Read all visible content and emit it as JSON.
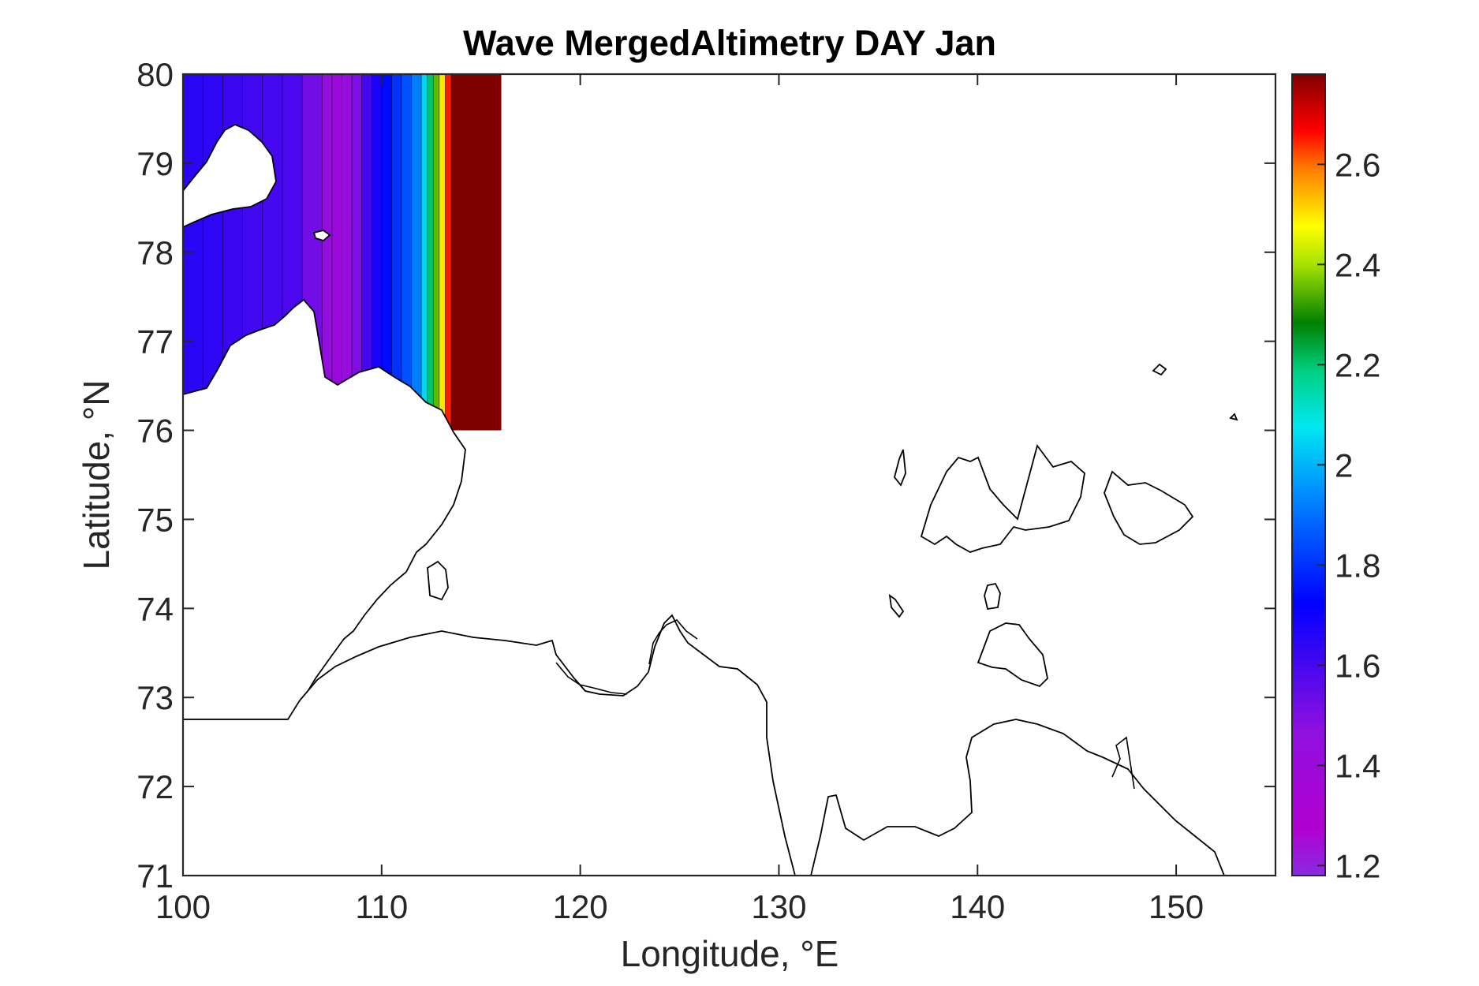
{
  "chart_data": {
    "type": "heatmap",
    "title": "Wave MergedAltimetry DAY Jan",
    "xlabel": "Longitude, °E",
    "ylabel": "Latitude, °N",
    "xlim": [
      100,
      155
    ],
    "ylim": [
      71,
      80
    ],
    "xticks": [
      100,
      110,
      120,
      130,
      140,
      150
    ],
    "yticks": [
      71,
      72,
      73,
      74,
      75,
      76,
      77,
      78,
      79,
      80
    ],
    "colorbar": {
      "colormap": "jet-extended (violet to dark red)",
      "clim": [
        1.18,
        2.78
      ],
      "ticks": [
        1.2,
        1.4,
        1.6,
        1.8,
        2,
        2.2,
        2.4,
        2.6
      ],
      "tick_labels": [
        "1.2",
        "1.4",
        "1.6",
        "1.8",
        "2",
        "2.2",
        "2.4",
        "2.6"
      ]
    },
    "field_columns": {
      "description_free": true,
      "lat_top": 80,
      "lat_bottom": 76,
      "lon": [
        100,
        101,
        102,
        103,
        104,
        105,
        106,
        107,
        107.5,
        108,
        108.5,
        109,
        109.5,
        110,
        110.5,
        111,
        111.5,
        112,
        112.3,
        112.6,
        112.9,
        113.2,
        113.5,
        116
      ],
      "values": [
        1.65,
        1.64,
        1.62,
        1.61,
        1.6,
        1.59,
        1.52,
        1.45,
        1.4,
        1.42,
        1.5,
        1.6,
        1.68,
        1.74,
        1.8,
        1.85,
        1.92,
        2.05,
        2.2,
        2.35,
        2.5,
        2.65,
        2.78,
        2.78
      ]
    },
    "grid": false,
    "coastline_color": "#000000",
    "land_color": "#ffffff"
  }
}
